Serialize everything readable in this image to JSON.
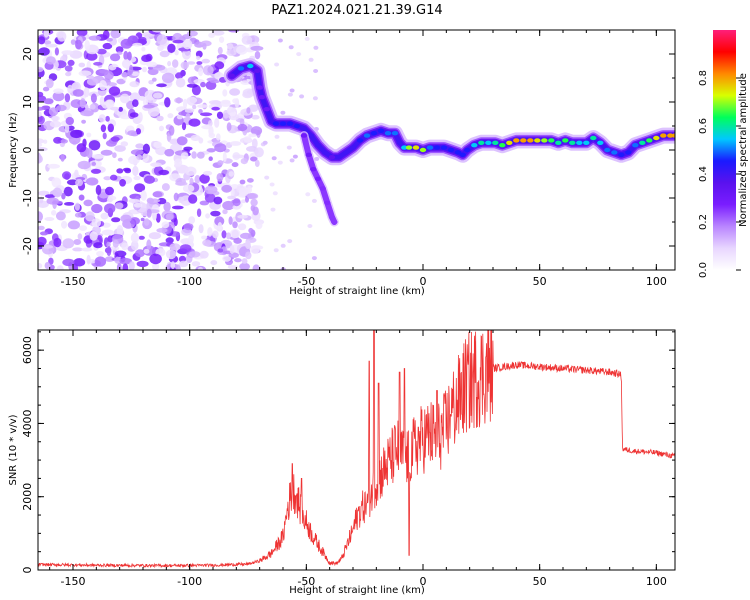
{
  "figure_title": "PAZ1.2024.021.21.39.G14",
  "colors": {
    "snr_line": "#ee3333",
    "spectro_ramp": [
      "#ffffff",
      "#e8d6ff",
      "#b985ff",
      "#7a1dff",
      "#5a12ee",
      "#1a1aff",
      "#00c8ff",
      "#00ff5a",
      "#d8ff00",
      "#ff8800",
      "#ff0000",
      "#ff1f7a"
    ]
  },
  "chart_data": [
    {
      "type": "heatmap",
      "title": "PAZ1.2024.021.21.39.G14",
      "xlabel": "Height of straight line (km)",
      "ylabel": "Frequency (Hz)",
      "xlim": [
        -165,
        108
      ],
      "ylim": [
        -25,
        25
      ],
      "xticks": [
        -150,
        -100,
        -50,
        0,
        50,
        100
      ],
      "xtick_labels": [
        "-150",
        "-100",
        "-50",
        "0",
        "50",
        "100"
      ],
      "yticks": [
        -20,
        -10,
        0,
        10,
        20
      ],
      "ytick_labels": [
        "-20",
        "-10",
        "0",
        "10",
        "20"
      ],
      "colorbar": {
        "label": "Normalized spectral amplitude",
        "range": [
          0,
          1
        ],
        "ticks": [
          0.0,
          0.2,
          0.4,
          0.6,
          0.8
        ],
        "tick_labels": [
          "0.0",
          "0.2",
          "0.4",
          "0.6",
          "0.8"
        ]
      },
      "noise_region_xlim": [
        -165,
        -70
      ],
      "trace": {
        "x": [
          -82,
          -78,
          -74,
          -71,
          -70,
          -69,
          -67,
          -65,
          -63,
          -60,
          -57,
          -54,
          -51,
          -48,
          -45,
          -42,
          -39,
          -36,
          -33,
          -30,
          -27,
          -24,
          -21,
          -18,
          -15,
          -12,
          -10,
          -8,
          -6,
          -3,
          0,
          3,
          6,
          9,
          12,
          15,
          17,
          19,
          22,
          25,
          28,
          31,
          34,
          37,
          40,
          43,
          46,
          49,
          52,
          55,
          58,
          61,
          64,
          67,
          70,
          73,
          76,
          79,
          82,
          85,
          88,
          91,
          94,
          97,
          100,
          103,
          106,
          108
        ],
        "y": [
          15.5,
          17,
          17.5,
          16.5,
          13,
          11,
          8.5,
          6,
          5.5,
          5.5,
          5.5,
          5,
          4.5,
          3,
          1,
          -0.5,
          -1.5,
          -1.5,
          -0.5,
          0.5,
          2,
          3,
          3.5,
          4,
          3.5,
          3.5,
          1.5,
          0.5,
          0.5,
          0.5,
          0,
          0.5,
          0.5,
          0.5,
          0,
          -0.5,
          -1,
          0,
          1,
          1.5,
          1.5,
          1.5,
          1,
          1.5,
          2,
          2,
          2,
          2,
          2,
          2,
          1.5,
          2,
          1.5,
          1.5,
          1.5,
          2.5,
          1.5,
          0,
          -0.5,
          -1,
          -0.5,
          1,
          1.5,
          2,
          2.5,
          3,
          3,
          3
        ],
        "amp": [
          0.35,
          0.5,
          0.55,
          0.35,
          0.3,
          0.3,
          0.3,
          0.4,
          0.45,
          0.45,
          0.45,
          0.45,
          0.4,
          0.4,
          0.4,
          0.4,
          0.35,
          0.4,
          0.4,
          0.4,
          0.45,
          0.5,
          0.45,
          0.45,
          0.5,
          0.5,
          0.4,
          0.55,
          0.7,
          0.75,
          0.7,
          0.5,
          0.45,
          0.45,
          0.45,
          0.45,
          0.45,
          0.45,
          0.55,
          0.6,
          0.55,
          0.6,
          0.65,
          0.75,
          0.8,
          0.8,
          0.8,
          0.75,
          0.7,
          0.65,
          0.6,
          0.65,
          0.6,
          0.55,
          0.55,
          0.6,
          0.55,
          0.5,
          0.5,
          0.45,
          0.45,
          0.5,
          0.6,
          0.65,
          0.75,
          0.8,
          0.8,
          0.8
        ]
      },
      "branch": {
        "x": [
          -51,
          -49,
          -47,
          -45,
          -43,
          -41,
          -39,
          -38
        ],
        "y": [
          3,
          -1,
          -4,
          -6,
          -8,
          -11,
          -14,
          -15
        ],
        "amp": [
          0.3,
          0.3,
          0.28,
          0.28,
          0.26,
          0.26,
          0.25,
          0.25
        ]
      }
    },
    {
      "type": "line",
      "xlabel": "Height of straight line (km)",
      "ylabel": "SNR (10 * v/v)",
      "xlim": [
        -165,
        108
      ],
      "ylim": [
        0,
        6550
      ],
      "xticks": [
        -150,
        -100,
        -50,
        0,
        50,
        100
      ],
      "xtick_labels": [
        "-150",
        "-100",
        "-50",
        "0",
        "50",
        "100"
      ],
      "yticks": [
        0,
        2000,
        4000,
        6000
      ],
      "ytick_labels": [
        "0",
        "2000",
        "4000",
        "6000"
      ],
      "envelope": {
        "x": [
          -165,
          -140,
          -110,
          -90,
          -75,
          -70,
          -65,
          -60,
          -58,
          -56,
          -54,
          -52,
          -50,
          -47,
          -45,
          -42,
          -40,
          -37,
          -35,
          -33,
          -30,
          -28,
          -26,
          -24,
          -22,
          -20,
          -18,
          -15,
          -12,
          -10,
          -8,
          -6,
          -3,
          0,
          3,
          6,
          9,
          12,
          15,
          18,
          21,
          25,
          30,
          35,
          40,
          50,
          60,
          70,
          80,
          84,
          85,
          85.5,
          90,
          100,
          108
        ],
        "y": [
          150,
          130,
          120,
          130,
          160,
          250,
          450,
          900,
          1700,
          2200,
          2000,
          1500,
          1300,
          900,
          700,
          400,
          200,
          180,
          300,
          600,
          1100,
          1500,
          1700,
          1800,
          2100,
          2400,
          2600,
          2900,
          3200,
          3300,
          3000,
          3100,
          3400,
          3600,
          3700,
          3600,
          3800,
          4300,
          4600,
          5000,
          5200,
          5350,
          5500,
          5550,
          5600,
          5550,
          5500,
          5450,
          5400,
          5350,
          5300,
          3300,
          3250,
          3200,
          3100
        ]
      },
      "noise": {
        "x": [
          -56,
          -52,
          -23,
          -21,
          -19,
          -10,
          -8,
          -6,
          -2,
          6,
          12
        ],
        "amp": [
          2900,
          2500,
          5700,
          6550,
          5100,
          5400,
          5500,
          400,
          3900,
          4900,
          4200
        ]
      }
    }
  ]
}
